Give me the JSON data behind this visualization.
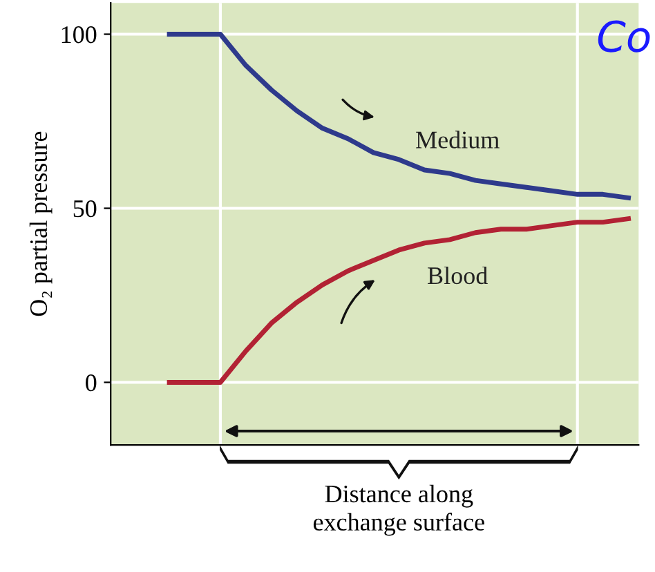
{
  "chart_data": {
    "type": "line",
    "xlabel": "Distance along\nexchange surface",
    "ylabel": "O₂ partial pressure",
    "categories": [
      null,
      null,
      null,
      null,
      null,
      null,
      null,
      null,
      null,
      null,
      null,
      null,
      null,
      null,
      null,
      null,
      null,
      null,
      null
    ],
    "series": [
      {
        "name": "Medium",
        "color": "#2e3a8c",
        "values": [
          100,
          100,
          100,
          91,
          84,
          78,
          73,
          70,
          66,
          64,
          61,
          60,
          58,
          57,
          56,
          55,
          54,
          54,
          53
        ]
      },
      {
        "name": "Blood",
        "color": "#b22234",
        "values": [
          0,
          0,
          0,
          9,
          17,
          23,
          28,
          32,
          35,
          38,
          40,
          41,
          43,
          44,
          44,
          45,
          46,
          46,
          47
        ]
      }
    ],
    "ylim": [
      -18,
      109
    ],
    "yticks": [
      0,
      50,
      100
    ],
    "grid": "y",
    "legend": false,
    "marker": "none",
    "line_style": "solid",
    "annotations": [
      "Co"
    ]
  }
}
